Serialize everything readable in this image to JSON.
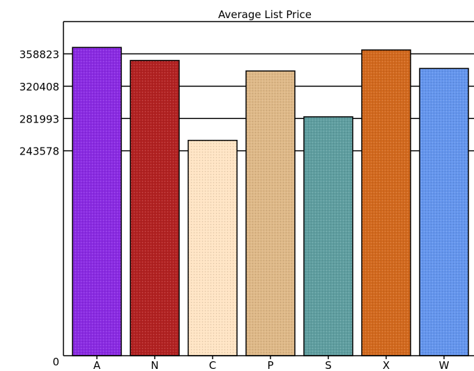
{
  "chart_data": {
    "type": "bar",
    "title": "Average List Price",
    "categories": [
      "A",
      "N",
      "C",
      "P",
      "S",
      "X",
      "W"
    ],
    "values": [
      366500,
      351000,
      256000,
      338500,
      284000,
      363500,
      341500
    ],
    "ylim": [
      0,
      397238
    ],
    "yticks": [
      0,
      243578,
      281993,
      320408,
      358823
    ],
    "ytick_labels": [
      "0",
      "243578",
      "281993",
      "320408",
      "358823"
    ],
    "grid": true,
    "legend": "none",
    "colors": [
      "#8a2be2",
      "#b22222",
      "#ffe4c4",
      "#deb887",
      "#5f9ea0",
      "#d2691e",
      "#6495ed"
    ]
  }
}
